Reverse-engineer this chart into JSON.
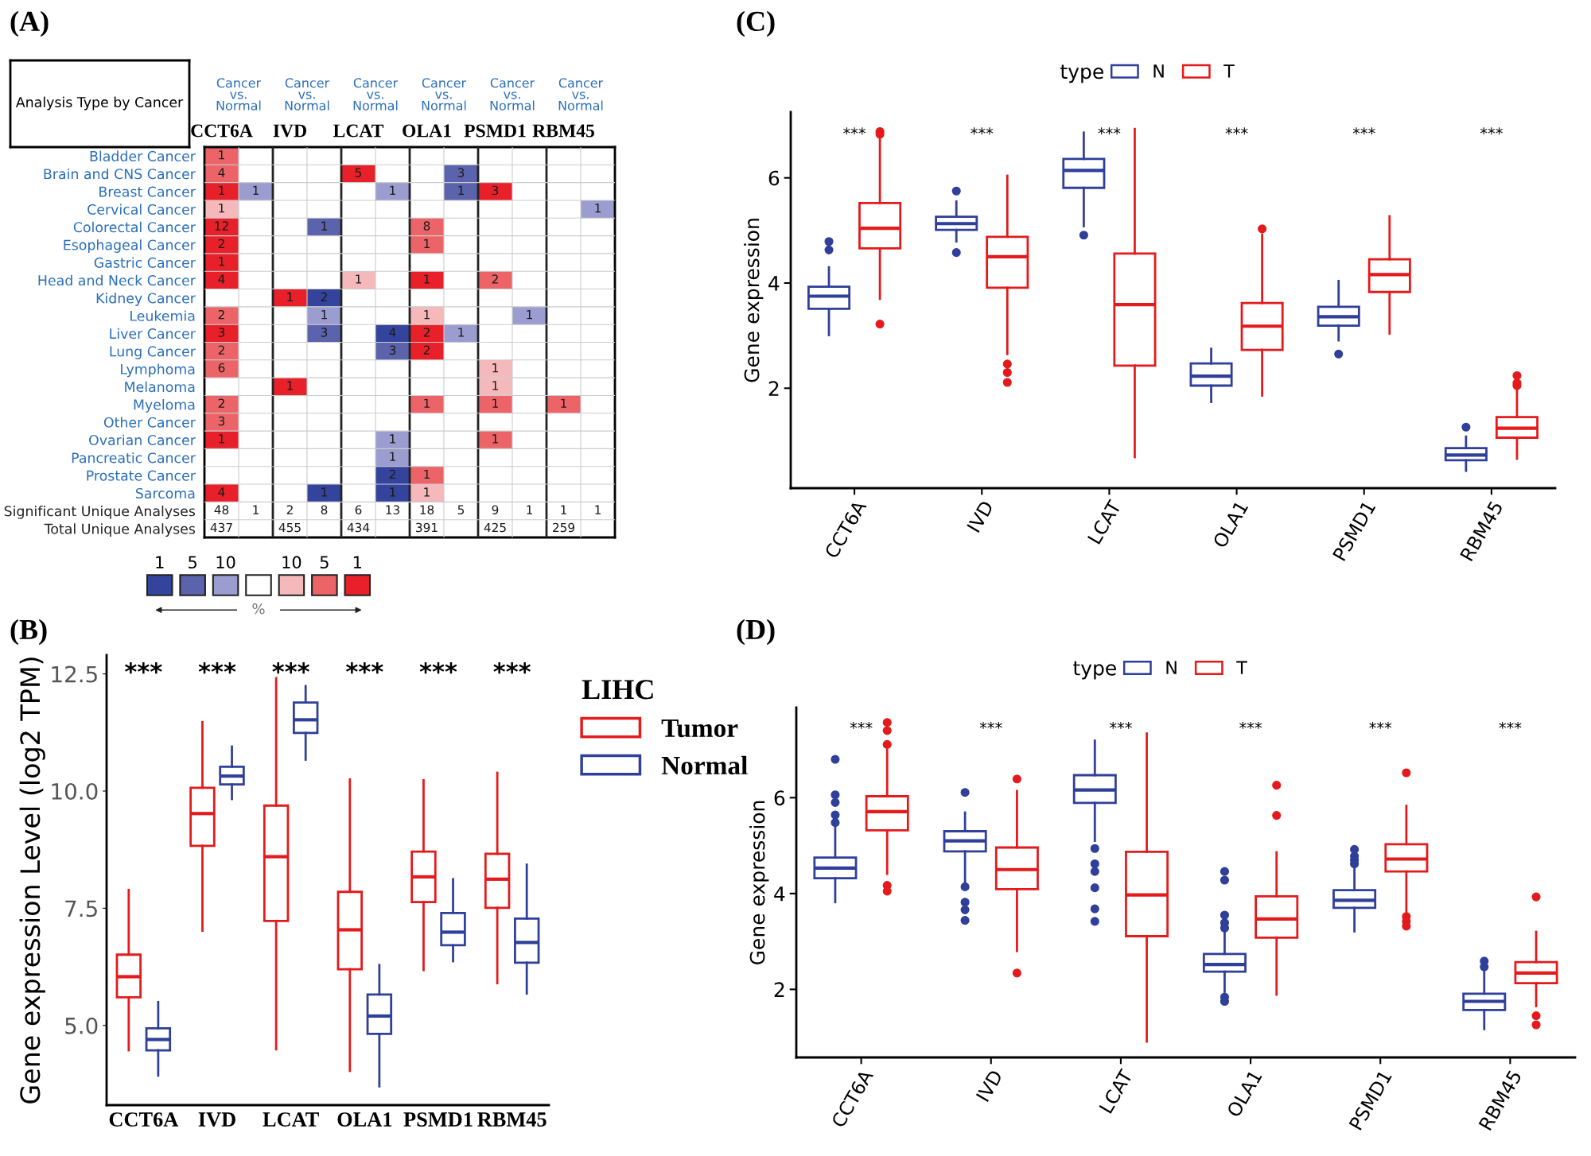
{
  "chart_data": [
    {
      "type": "heatmap",
      "title": "(A)",
      "categories": [
        "CCT6A",
        null,
        "IVD",
        null,
        "LCAT",
        null,
        "OLA1",
        null,
        "PSMD1",
        null,
        "RBM45",
        null
      ],
      "y_categories": [
        "Bladder Cancer",
        "Brain and CNS Cancer",
        "Breast Cancer",
        "Cervical Cancer",
        "Colorectal Cancer",
        "Esophageal Cancer",
        "Gastric Cancer",
        "Head and Neck Cancer",
        "Kidney Cancer",
        "Leukemia",
        "Liver Cancer",
        "Lung Cancer",
        "Lymphoma",
        "Melanoma",
        "Myeloma",
        "Other Cancer",
        "Ovarian Cancer",
        "Pancreatic Cancer",
        "Prostate Cancer",
        "Sarcoma",
        "Significant Unique Analyses",
        "Total Unique Analyses"
      ],
      "cells": [
        [
          1,
          null,
          null,
          null,
          null,
          null,
          null,
          null,
          null,
          null,
          null,
          null
        ],
        [
          4,
          null,
          null,
          null,
          5,
          null,
          null,
          3,
          null,
          null,
          null,
          null
        ],
        [
          1,
          1,
          null,
          null,
          null,
          1,
          null,
          1,
          3,
          null,
          null,
          null
        ],
        [
          1,
          null,
          null,
          null,
          null,
          null,
          null,
          null,
          null,
          null,
          null,
          1
        ],
        [
          12,
          null,
          null,
          1,
          null,
          null,
          8,
          null,
          null,
          null,
          null,
          null
        ],
        [
          2,
          null,
          null,
          null,
          null,
          null,
          1,
          null,
          null,
          null,
          null,
          null
        ],
        [
          1,
          null,
          null,
          null,
          null,
          null,
          null,
          null,
          null,
          null,
          null,
          null
        ],
        [
          4,
          null,
          null,
          null,
          1,
          null,
          1,
          null,
          2,
          null,
          null,
          null
        ],
        [
          null,
          null,
          1,
          2,
          null,
          null,
          null,
          null,
          null,
          null,
          null,
          null
        ],
        [
          2,
          null,
          null,
          1,
          null,
          null,
          1,
          null,
          null,
          1,
          null,
          null
        ],
        [
          3,
          null,
          null,
          3,
          null,
          4,
          2,
          1,
          null,
          null,
          null,
          null
        ],
        [
          2,
          null,
          null,
          null,
          null,
          3,
          2,
          null,
          null,
          null,
          null,
          null
        ],
        [
          6,
          null,
          null,
          null,
          null,
          null,
          null,
          null,
          1,
          null,
          null,
          null
        ],
        [
          null,
          null,
          1,
          null,
          null,
          null,
          null,
          null,
          1,
          null,
          null,
          null
        ],
        [
          2,
          null,
          null,
          null,
          null,
          null,
          1,
          null,
          1,
          null,
          1,
          null
        ],
        [
          3,
          null,
          null,
          null,
          null,
          null,
          null,
          null,
          null,
          null,
          null,
          null
        ],
        [
          1,
          null,
          null,
          null,
          null,
          1,
          null,
          null,
          1,
          null,
          null,
          null
        ],
        [
          null,
          null,
          null,
          null,
          null,
          1,
          null,
          null,
          null,
          null,
          null,
          null
        ],
        [
          null,
          null,
          null,
          null,
          null,
          2,
          1,
          null,
          null,
          null,
          null,
          null
        ],
        [
          4,
          null,
          null,
          1,
          null,
          1,
          1,
          null,
          null,
          null,
          null,
          null
        ],
        [
          48,
          1,
          2,
          8,
          6,
          13,
          18,
          5,
          9,
          1,
          1,
          1
        ],
        [
          437,
          null,
          455,
          null,
          434,
          null,
          391,
          null,
          425,
          null,
          259,
          null
        ]
      ],
      "colors": [
        [
          "#ec6468",
          null,
          null,
          null,
          null,
          null,
          null,
          null,
          null,
          null,
          null,
          null
        ],
        [
          "#ec6468",
          null,
          null,
          null,
          "#e8202a",
          null,
          null,
          "#5a63ab",
          null,
          null,
          null,
          null
        ],
        [
          "#e8202a",
          "#9b9dd0",
          null,
          null,
          null,
          "#9b9dd0",
          null,
          "#5a63ab",
          "#e8202a",
          null,
          null,
          null
        ],
        [
          "#f6b9bb",
          null,
          null,
          null,
          null,
          null,
          null,
          null,
          null,
          null,
          null,
          "#9b9dd0"
        ],
        [
          "#e8202a",
          null,
          null,
          "#5a63ab",
          null,
          null,
          "#ec6468",
          null,
          null,
          null,
          null,
          null
        ],
        [
          "#e8202a",
          null,
          null,
          null,
          null,
          null,
          "#ec6468",
          null,
          null,
          null,
          null,
          null
        ],
        [
          "#e8202a",
          null,
          null,
          null,
          null,
          null,
          null,
          null,
          null,
          null,
          null,
          null
        ],
        [
          "#e8202a",
          null,
          null,
          null,
          "#f6b9bb",
          null,
          "#e8202a",
          null,
          "#ec6468",
          null,
          null,
          null
        ],
        [
          null,
          null,
          "#e8202a",
          "#34449c",
          null,
          null,
          null,
          null,
          null,
          null,
          null,
          null
        ],
        [
          "#ec6468",
          null,
          null,
          "#9b9dd0",
          null,
          null,
          "#f6b9bb",
          null,
          null,
          "#9b9dd0",
          null,
          null
        ],
        [
          "#e8202a",
          null,
          null,
          "#5a63ab",
          null,
          "#34449c",
          "#e8202a",
          "#9b9dd0",
          null,
          null,
          null,
          null
        ],
        [
          "#ec6468",
          null,
          null,
          null,
          null,
          "#5a63ab",
          "#e8202a",
          null,
          null,
          null,
          null,
          null
        ],
        [
          "#ec6468",
          null,
          null,
          null,
          null,
          null,
          null,
          null,
          "#f6b9bb",
          null,
          null,
          null
        ],
        [
          null,
          null,
          "#e8202a",
          null,
          null,
          null,
          null,
          null,
          "#f6b9bb",
          null,
          null,
          null
        ],
        [
          "#ec6468",
          null,
          null,
          null,
          null,
          null,
          "#ec6468",
          null,
          "#ec6468",
          null,
          "#ec6468",
          null
        ],
        [
          "#ec6468",
          null,
          null,
          null,
          null,
          null,
          null,
          null,
          null,
          null,
          null,
          null
        ],
        [
          "#e8202a",
          null,
          null,
          null,
          null,
          "#9b9dd0",
          null,
          null,
          "#ec6468",
          null,
          null,
          null
        ],
        [
          null,
          null,
          null,
          null,
          null,
          "#9b9dd0",
          null,
          null,
          null,
          null,
          null,
          null
        ],
        [
          null,
          null,
          null,
          null,
          null,
          "#34449c",
          "#ec6468",
          null,
          null,
          null,
          null,
          null
        ],
        [
          "#e8202a",
          null,
          null,
          "#34449c",
          null,
          "#34449c",
          "#f6b9bb",
          null,
          null,
          null,
          null,
          null
        ],
        [
          "#ffffff",
          "#ffffff",
          "#ffffff",
          "#ffffff",
          "#ffffff",
          "#ffffff",
          "#ffffff",
          "#ffffff",
          "#ffffff",
          "#ffffff",
          "#ffffff",
          "#ffffff"
        ],
        [
          "#ffffff",
          null,
          "#ffffff",
          null,
          "#ffffff",
          null,
          "#ffffff",
          null,
          "#ffffff",
          null,
          "#ffffff",
          null
        ]
      ],
      "data_labels": true,
      "annotations": [
        "Analysis Type by Cancer",
        "Cancer vs. Normal",
        "Cancer vs. Normal",
        "Cancer vs. Normal",
        "Cancer vs. Normal",
        "Cancer vs. Normal",
        "Cancer vs. Normal",
        "1",
        "5",
        "10",
        "10",
        "5",
        "1",
        "%"
      ],
      "grid": true
    },
    {
      "type": "box",
      "title": "(B)",
      "ylabel": "Gene expression Level (log2 TPM)",
      "legend_title": "LIHC",
      "categories": [
        "CCT6A",
        "IVD",
        "LCAT",
        "OLA1",
        "PSMD1",
        "RBM45"
      ],
      "series": [
        {
          "name": "Tumor",
          "color": "#e41a1c",
          "boxes": [
            {
              "low": 4.47,
              "q1": 5.6,
              "median": 6.04,
              "q3": 6.51,
              "high": 7.89
            },
            {
              "low": 7.02,
              "q1": 8.83,
              "median": 9.52,
              "q3": 10.07,
              "high": 11.47
            },
            {
              "low": 4.49,
              "q1": 7.23,
              "median": 8.6,
              "q3": 9.69,
              "high": 12.41
            },
            {
              "low": 4.03,
              "q1": 6.2,
              "median": 7.04,
              "q3": 7.85,
              "high": 10.25
            },
            {
              "low": 6.18,
              "q1": 7.63,
              "median": 8.17,
              "q3": 8.71,
              "high": 10.23
            },
            {
              "low": 5.9,
              "q1": 7.51,
              "median": 8.12,
              "q3": 8.66,
              "high": 10.39
            }
          ]
        },
        {
          "name": "Normal",
          "color": "#2f3f9a",
          "boxes": [
            {
              "low": 3.93,
              "q1": 4.47,
              "median": 4.7,
              "q3": 4.94,
              "high": 5.5
            },
            {
              "low": 9.83,
              "q1": 10.14,
              "median": 10.32,
              "q3": 10.52,
              "high": 10.95
            },
            {
              "low": 10.67,
              "q1": 11.24,
              "median": 11.52,
              "q3": 11.89,
              "high": 12.24
            },
            {
              "low": 3.7,
              "q1": 4.82,
              "median": 5.2,
              "q3": 5.66,
              "high": 6.29
            },
            {
              "low": 6.37,
              "q1": 6.71,
              "median": 6.99,
              "q3": 7.4,
              "high": 8.12
            },
            {
              "low": 5.68,
              "q1": 6.34,
              "median": 6.77,
              "q3": 7.28,
              "high": 8.43
            }
          ]
        }
      ],
      "ylim": [
        3.3,
        12.9
      ],
      "yticks": [
        {
          "value": 5,
          "label": "5.0"
        },
        {
          "value": 7.5,
          "label": "7.5"
        },
        {
          "value": 10,
          "label": "10.0"
        },
        {
          "value": 12.5,
          "label": "12.5"
        }
      ],
      "annotations": [
        "***",
        "***",
        "***",
        "***",
        "***",
        "***"
      ],
      "legend": "right"
    },
    {
      "type": "box",
      "title": "(C)",
      "ylabel": "Gene expression",
      "legend_title": "type",
      "categories": [
        "CCT6A",
        "IVD",
        "LCAT",
        "OLA1",
        "PSMD1",
        "RBM45"
      ],
      "series": [
        {
          "name": "N",
          "color": "#2f3f9a",
          "boxes": [
            {
              "low": 3.01,
              "q1": 3.51,
              "median": 3.75,
              "q3": 3.93,
              "high": 4.3,
              "outliers": [
                4.79,
                4.63
              ]
            },
            {
              "low": 4.79,
              "q1": 5.01,
              "median": 5.13,
              "q3": 5.26,
              "high": 5.55,
              "outliers": [
                5.75,
                4.58
              ]
            },
            {
              "low": 5.08,
              "q1": 5.81,
              "median": 6.14,
              "q3": 6.36,
              "high": 6.86,
              "outliers": [
                4.91
              ]
            },
            {
              "low": 1.74,
              "q1": 2.05,
              "median": 2.23,
              "q3": 2.47,
              "high": 2.75
            },
            {
              "low": 2.91,
              "q1": 3.19,
              "median": 3.36,
              "q3": 3.55,
              "high": 4.04,
              "outliers": [
                2.65
              ]
            },
            {
              "low": 0.43,
              "q1": 0.63,
              "median": 0.73,
              "q3": 0.86,
              "high": 1.08,
              "outliers": [
                1.26
              ]
            }
          ]
        },
        {
          "name": "T",
          "color": "#e41a1c",
          "boxes": [
            {
              "low": 3.7,
              "q1": 4.66,
              "median": 5.04,
              "q3": 5.52,
              "high": 6.75,
              "outliers": [
                6.88,
                6.83,
                3.22
              ]
            },
            {
              "low": 2.65,
              "q1": 3.91,
              "median": 4.5,
              "q3": 4.88,
              "high": 6.04,
              "outliers": [
                2.46,
                2.3,
                2.11
              ]
            },
            {
              "low": 0.69,
              "q1": 2.43,
              "median": 3.59,
              "q3": 4.56,
              "high": 6.93
            },
            {
              "low": 1.86,
              "q1": 2.73,
              "median": 3.18,
              "q3": 3.62,
              "high": 4.92,
              "outliers": [
                5.03
              ]
            },
            {
              "low": 3.04,
              "q1": 3.83,
              "median": 4.16,
              "q3": 4.45,
              "high": 5.27
            },
            {
              "low": 0.66,
              "q1": 1.06,
              "median": 1.24,
              "q3": 1.45,
              "high": 1.97,
              "outliers": [
                2.24,
                2.1,
                2.05
              ]
            }
          ]
        }
      ],
      "ylim": [
        0.1,
        7.25
      ],
      "yticks": [
        2,
        4,
        6
      ],
      "annotations": [
        "***",
        "***",
        "***",
        "***",
        "***",
        "***"
      ],
      "legend": "top"
    },
    {
      "type": "box",
      "title": "(D)",
      "ylabel": "Gene expression",
      "legend_title": "type",
      "categories": [
        "CCT6A",
        "IVD",
        "LCAT",
        "OLA1",
        "PSMD1",
        "RBM45"
      ],
      "series": [
        {
          "name": "N",
          "color": "#2f3f9a",
          "boxes": [
            {
              "low": 3.82,
              "q1": 4.32,
              "median": 4.53,
              "q3": 4.75,
              "high": 5.37,
              "outliers": [
                6.8,
                6.06,
                5.9,
                5.64,
                5.48
              ]
            },
            {
              "low": 4.25,
              "q1": 4.88,
              "median": 5.1,
              "q3": 5.3,
              "high": 5.69,
              "outliers": [
                6.11,
                4.14,
                3.82,
                3.66,
                3.44
              ]
            },
            {
              "low": 5.1,
              "q1": 5.89,
              "median": 6.16,
              "q3": 6.47,
              "high": 7.19,
              "outliers": [
                4.94,
                4.62,
                4.46,
                4.12,
                3.68,
                3.42
              ]
            },
            {
              "low": 1.95,
              "q1": 2.37,
              "median": 2.52,
              "q3": 2.74,
              "high": 3.21,
              "outliers": [
                4.46,
                4.28,
                3.55,
                3.39,
                3.28,
                1.84,
                1.75
              ]
            },
            {
              "low": 3.21,
              "q1": 3.7,
              "median": 3.86,
              "q3": 4.07,
              "high": 4.57,
              "outliers": [
                4.92,
                4.78,
                4.7,
                4.62
              ]
            },
            {
              "low": 1.17,
              "q1": 1.57,
              "median": 1.75,
              "q3": 1.91,
              "high": 2.37,
              "outliers": [
                2.59,
                2.47
              ]
            }
          ]
        },
        {
          "name": "T",
          "color": "#e41a1c",
          "boxes": [
            {
              "low": 4.41,
              "q1": 5.32,
              "median": 5.71,
              "q3": 6.03,
              "high": 7.0,
              "outliers": [
                7.57,
                7.4,
                7.11,
                4.17,
                4.05
              ]
            },
            {
              "low": 2.8,
              "q1": 4.09,
              "median": 4.5,
              "q3": 4.96,
              "high": 6.14,
              "outliers": [
                6.39,
                2.34
              ]
            },
            {
              "low": 0.91,
              "q1": 3.11,
              "median": 3.97,
              "q3": 4.87,
              "high": 7.34
            },
            {
              "low": 1.89,
              "q1": 3.08,
              "median": 3.47,
              "q3": 3.94,
              "high": 4.86,
              "outliers": [
                6.26,
                5.63
              ]
            },
            {
              "low": 3.6,
              "q1": 4.46,
              "median": 4.72,
              "q3": 5.03,
              "high": 5.83,
              "outliers": [
                6.52,
                3.52,
                3.42,
                3.32
              ]
            },
            {
              "low": 1.65,
              "q1": 2.13,
              "median": 2.34,
              "q3": 2.57,
              "high": 3.2,
              "outliers": [
                3.93,
                1.45,
                1.26
              ]
            }
          ]
        }
      ],
      "ylim": [
        0.58,
        7.88
      ],
      "yticks": [
        2,
        4,
        6
      ],
      "annotations": [
        "***",
        "***",
        "***",
        "***",
        "***",
        "***"
      ],
      "legend": "top"
    }
  ]
}
